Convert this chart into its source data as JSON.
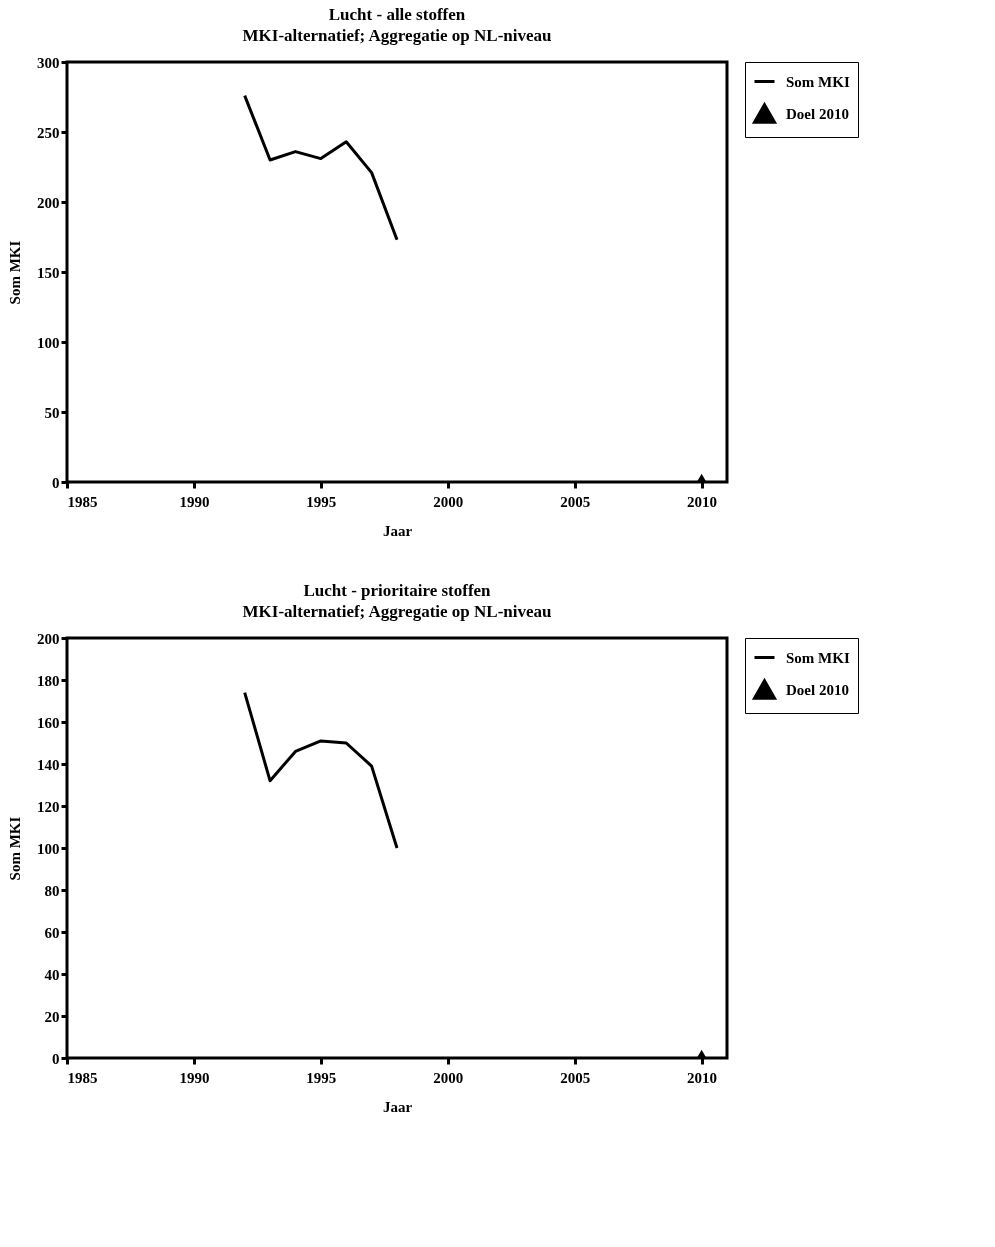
{
  "chart_data": [
    {
      "type": "line",
      "title": "Lucht - alle stoffen",
      "subtitle": "MKI-alternatief; Aggregatie op NL-niveau",
      "xlabel": "Jaar",
      "ylabel": "Som MKI",
      "xlim": [
        1985,
        2011
      ],
      "xticks": [
        1985,
        1990,
        1995,
        2000,
        2005,
        2010
      ],
      "ylim": [
        0,
        300
      ],
      "yticks": [
        0,
        50,
        100,
        150,
        200,
        250,
        300
      ],
      "grid": false,
      "legend": "right",
      "series": [
        {
          "name": "Som MKI",
          "color": "#000000",
          "x": [
            1992,
            1993,
            1994,
            1995,
            1996,
            1997,
            1998
          ],
          "values": [
            276,
            230,
            236,
            231,
            243,
            221,
            173
          ]
        },
        {
          "name": "Doel 2010",
          "type": "scatter",
          "marker": "triangle",
          "color": "#000000",
          "x": [
            2010
          ],
          "values": [
            3
          ]
        }
      ]
    },
    {
      "type": "line",
      "title": "Lucht - prioritaire stoffen",
      "subtitle": "MKI-alternatief; Aggregatie op NL-niveau",
      "xlabel": "Jaar",
      "ylabel": "Som MKI",
      "xlim": [
        1985,
        2011
      ],
      "xticks": [
        1985,
        1990,
        1995,
        2000,
        2005,
        2010
      ],
      "ylim": [
        0,
        200
      ],
      "yticks": [
        0,
        20,
        40,
        60,
        80,
        100,
        120,
        140,
        160,
        180,
        200
      ],
      "grid": false,
      "legend": "right",
      "series": [
        {
          "name": "Som MKI",
          "color": "#000000",
          "x": [
            1992,
            1993,
            1994,
            1995,
            1996,
            1997,
            1998
          ],
          "values": [
            174,
            132,
            146,
            151,
            150,
            139,
            100
          ]
        },
        {
          "name": "Doel 2010",
          "type": "scatter",
          "marker": "triangle",
          "color": "#000000",
          "x": [
            2010
          ],
          "values": [
            2
          ]
        }
      ]
    }
  ]
}
